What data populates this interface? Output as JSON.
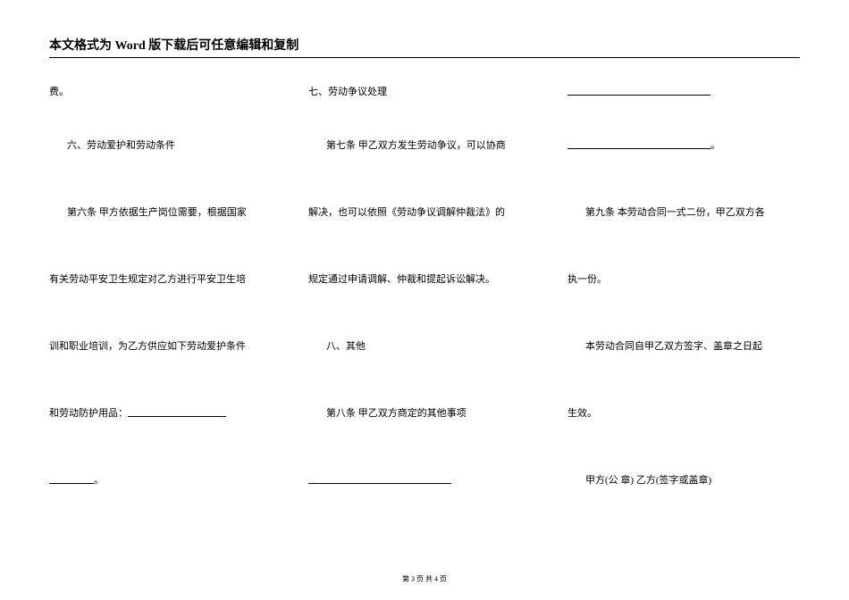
{
  "header": "本文格式为 Word 版下载后可任意编辑和复制",
  "col1": {
    "r1": "费。",
    "r2": "六、劳动爱护和劳动条件",
    "r3": "第六条 甲方依据生产岗位需要，根据国家",
    "r4": "有关劳动平安卫生规定对乙方进行平安卫生培",
    "r5": "训和职业培训，为乙方供应如下劳动爱护条件",
    "r6_prefix": "和劳动防护用品：",
    "r7_suffix": "。"
  },
  "col2": {
    "r1": "七、劳动争议处理",
    "r2": "第七条 甲乙双方发生劳动争议，可以协商",
    "r3": "解决，也可以依照《劳动争议调解仲裁法》的",
    "r4": "规定通过申请调解、仲裁和提起诉讼解决。",
    "r5": "八、其他",
    "r6": "第八条 甲乙双方商定的其他事项"
  },
  "col3": {
    "r2_suffix": "。",
    "r3": "第九条 本劳动合同一式二份，甲乙双方各",
    "r4": "执一份。",
    "r5": "本劳动合同自甲乙双方签字、盖章之日起",
    "r6": "生效。",
    "r7": "甲方(公 章)  乙方(签字或盖章)"
  },
  "footer": "第 3 页 共 4 页"
}
